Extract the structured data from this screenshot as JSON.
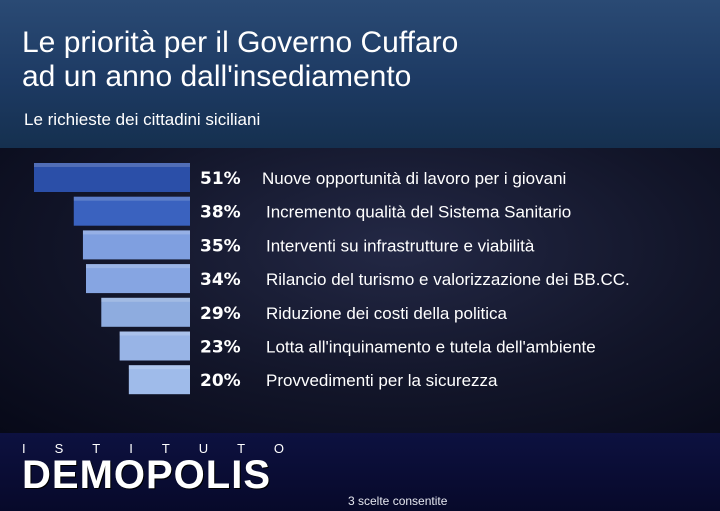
{
  "header": {
    "title_line1": "Le priorità per il Governo Cuffaro",
    "title_line2": "ad un anno dall'insediamento",
    "subtitle": "Le richieste dei cittadini siciliani"
  },
  "chart_data": {
    "type": "bar",
    "orientation": "horizontal",
    "categories": [
      "Nuove opportunità di lavoro per i giovani",
      "Incremento qualità del Sistema Sanitario",
      "Interventi su infrastrutture e viabilità",
      "Rilancio del turismo e valorizzazione dei BB.CC.",
      "Riduzione dei costi della politica",
      "Lotta all'inquinamento e tutela dell'ambiente",
      "Provvedimenti per la sicurezza"
    ],
    "values": [
      51,
      38,
      35,
      34,
      29,
      23,
      20
    ],
    "value_labels": [
      "51%",
      "38%",
      "35%",
      "34%",
      "29%",
      "23%",
      "20%"
    ],
    "xlim": [
      0,
      51
    ],
    "bar_colors": [
      "#2b4fa8",
      "#3a62bf",
      "#7f9fe0",
      "#86a5e2",
      "#8eacdf",
      "#98b4e6",
      "#9fbbea"
    ],
    "value_color": "#ffffff",
    "label_color": "#ffffff"
  },
  "footer": {
    "logo_top": "ISTITUTO",
    "logo_main": "DEMOPOLIS",
    "note": "3 scelte consentite"
  }
}
